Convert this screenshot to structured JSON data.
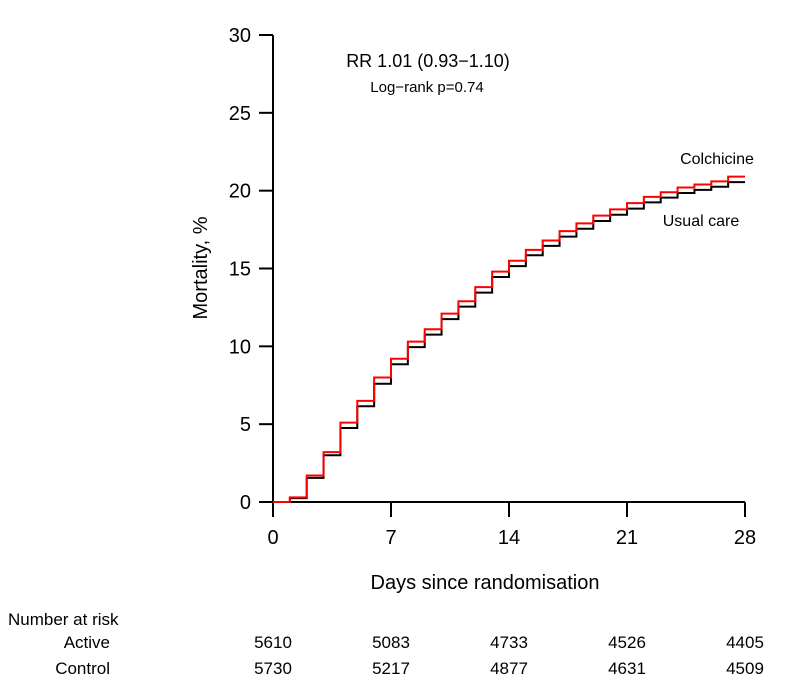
{
  "chart_data": {
    "type": "line",
    "subtype": "step",
    "xlabel": "Days since randomisation",
    "ylabel": "Mortality, %",
    "xlim": [
      0,
      28
    ],
    "ylim": [
      0,
      30
    ],
    "x_ticks": [
      "0",
      "7",
      "14",
      "21",
      "28"
    ],
    "x_tick_values": [
      0,
      7,
      14,
      21,
      28
    ],
    "y_ticks": [
      "0",
      "5",
      "10",
      "15",
      "20",
      "25",
      "30"
    ],
    "y_tick_values": [
      0,
      5,
      10,
      15,
      20,
      25,
      30
    ],
    "grid": false,
    "legend_position": "end-of-curve",
    "x_days": [
      0,
      1,
      2,
      3,
      4,
      5,
      6,
      7,
      8,
      9,
      10,
      11,
      12,
      13,
      14,
      15,
      16,
      17,
      18,
      19,
      20,
      21,
      22,
      23,
      24,
      25,
      26,
      27,
      28
    ],
    "series": [
      {
        "name": "Colchicine",
        "color": "#ff0000",
        "values": [
          0,
          0.3,
          1.7,
          3.2,
          5.1,
          6.5,
          8.0,
          9.2,
          10.3,
          11.1,
          12.1,
          12.9,
          13.8,
          14.8,
          15.5,
          16.2,
          16.8,
          17.4,
          17.9,
          18.4,
          18.8,
          19.2,
          19.6,
          19.9,
          20.2,
          20.4,
          20.6,
          20.9,
          20.9
        ]
      },
      {
        "name": "Usual care",
        "color": "#000000",
        "values": [
          0,
          0.25,
          1.55,
          3.0,
          4.75,
          6.15,
          7.6,
          8.85,
          9.95,
          10.75,
          11.75,
          12.55,
          13.45,
          14.45,
          15.15,
          15.85,
          16.45,
          17.05,
          17.55,
          18.05,
          18.45,
          18.85,
          19.25,
          19.55,
          19.85,
          20.05,
          20.25,
          20.55,
          20.55
        ]
      }
    ],
    "annotations": [
      {
        "text": "RR 1.01 (0.93−1.10)"
      },
      {
        "text": "Log−rank p=0.74"
      }
    ]
  },
  "risk_table": {
    "title": "Number at risk",
    "days": [
      0,
      7,
      14,
      21,
      28
    ],
    "rows": [
      {
        "label": "Active",
        "color": "#ff0000",
        "values": [
          "5610",
          "5083",
          "4733",
          "4526",
          "4405"
        ]
      },
      {
        "label": "Control",
        "color": "#000000",
        "values": [
          "5730",
          "5217",
          "4877",
          "4631",
          "4509"
        ]
      }
    ]
  },
  "colors": {
    "accent_red": "#ff0000",
    "axis_black": "#000000",
    "background": "#ffffff"
  }
}
